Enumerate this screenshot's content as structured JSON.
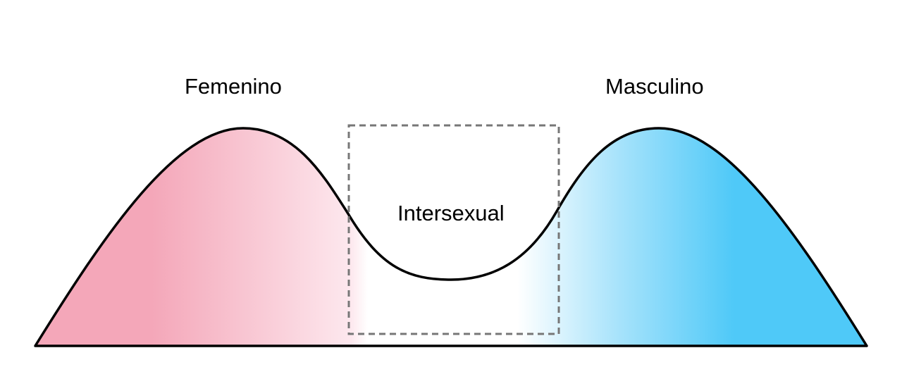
{
  "labels": {
    "female": "Femenino",
    "male": "Masculino",
    "intersex": "Intersexual"
  },
  "colors": {
    "female": "#f4a7b9",
    "male": "#4fc9f8",
    "outline": "#000000",
    "box": "#777777"
  }
}
